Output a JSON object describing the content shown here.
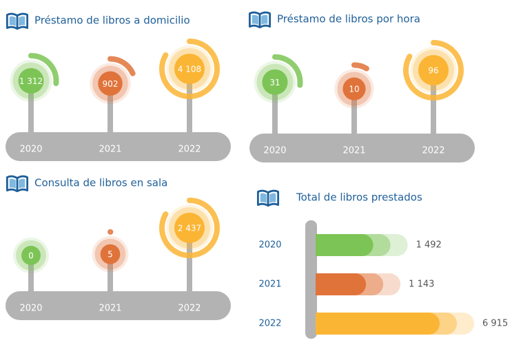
{
  "chart_data": [
    {
      "type": "radial",
      "title": "Préstamo de libros a domicilio",
      "categories": [
        "2020",
        "2021",
        "2022"
      ],
      "values": [
        1312,
        902,
        4108
      ],
      "value_labels": [
        "1 312",
        "902",
        "4 108"
      ],
      "colors": [
        "#7dc456",
        "#e0733a",
        "#fbb534"
      ]
    },
    {
      "type": "radial",
      "title": "Préstamo de libros por hora",
      "categories": [
        "2020",
        "2021",
        "2022"
      ],
      "values": [
        31,
        10,
        96
      ],
      "colors": [
        "#7dc456",
        "#e0733a",
        "#fbb534"
      ]
    },
    {
      "type": "radial",
      "title": "Consulta de libros en sala",
      "categories": [
        "2020",
        "2021",
        "2022"
      ],
      "values": [
        0,
        5,
        2437
      ],
      "value_labels": [
        "0",
        "5",
        "2 437"
      ],
      "colors": [
        "#7dc456",
        "#e0733a",
        "#fbb534"
      ]
    },
    {
      "type": "bar",
      "title": "Total de libros prestados",
      "categories": [
        "2020",
        "2021",
        "2022"
      ],
      "values": [
        1492,
        1143,
        6915
      ],
      "value_labels": [
        "1 492",
        "1 143",
        "6 915"
      ],
      "colors": [
        "#7dc456",
        "#e0733a",
        "#fbb534"
      ]
    }
  ]
}
